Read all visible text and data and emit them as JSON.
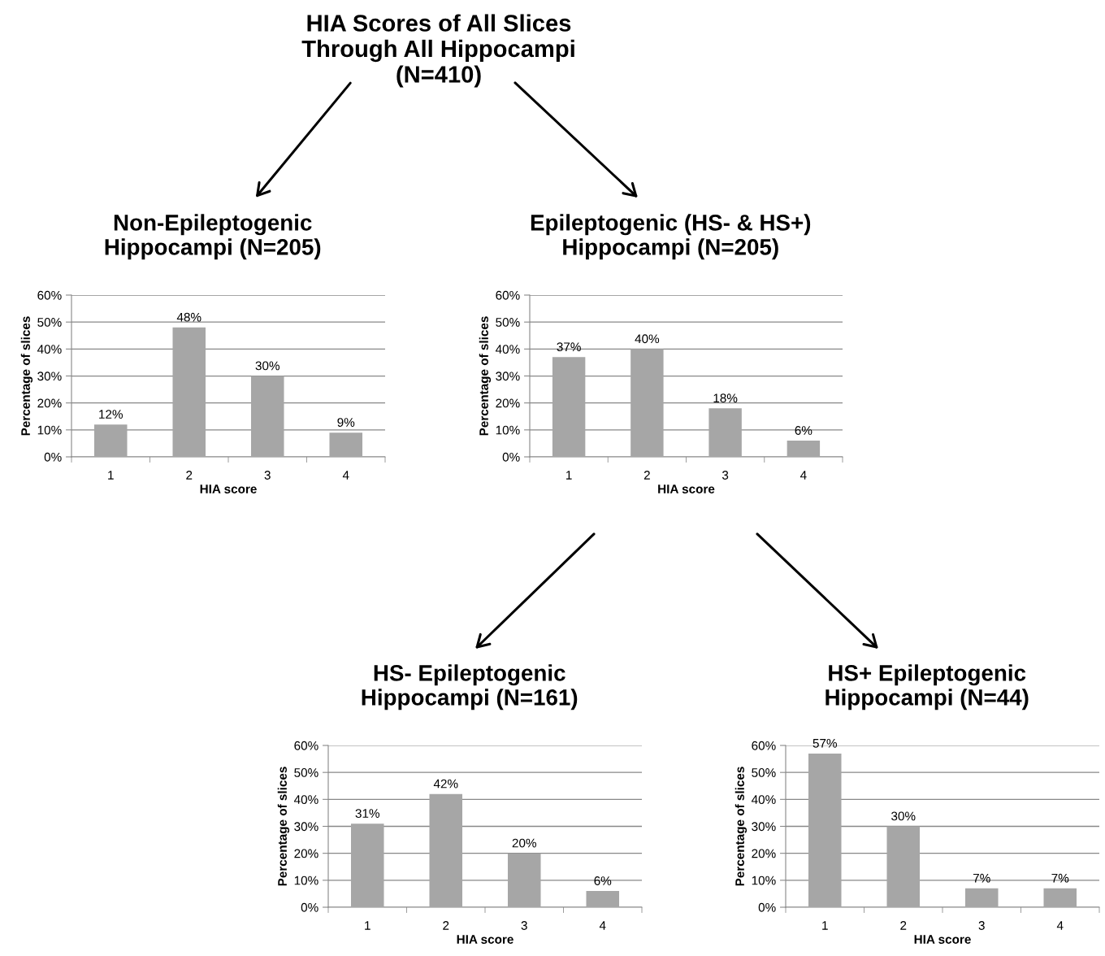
{
  "chart_data": [
    {
      "type": "other",
      "title": "HIA Scores of All Slices\nThrough All Hippocampi\n(N=410)"
    },
    {
      "type": "bar",
      "title": "Non-Epileptogenic\nHippocampi (N=205)",
      "xlabel": "HIA score",
      "ylabel": "Percentage of slices",
      "categories": [
        "1",
        "2",
        "3",
        "4"
      ],
      "color": "#a6a6a6",
      "values": [
        12,
        48,
        30,
        9
      ],
      "value_labels": [
        "12%",
        "48%",
        "30%",
        "9%"
      ],
      "ylim": [
        0,
        60
      ],
      "yticks": [
        {
          "value": 0,
          "label": "0%"
        },
        {
          "value": 10,
          "label": "10%"
        },
        {
          "value": 20,
          "label": "20%"
        },
        {
          "value": 30,
          "label": "30%"
        },
        {
          "value": 40,
          "label": "40%"
        },
        {
          "value": 50,
          "label": "50%"
        },
        {
          "value": 60,
          "label": "60%"
        }
      ],
      "grid": "y"
    },
    {
      "type": "bar",
      "title": "Epileptogenic (HS- & HS+)\nHippocampi (N=205)",
      "xlabel": "HIA score",
      "ylabel": "Percentage of slices",
      "categories": [
        "1",
        "2",
        "3",
        "4"
      ],
      "color": "#a6a6a6",
      "values": [
        37,
        40,
        18,
        6
      ],
      "value_labels": [
        "37%",
        "40%",
        "18%",
        "6%"
      ],
      "ylim": [
        0,
        60
      ],
      "yticks": [
        {
          "value": 0,
          "label": "0%"
        },
        {
          "value": 10,
          "label": "10%"
        },
        {
          "value": 20,
          "label": "20%"
        },
        {
          "value": 30,
          "label": "30%"
        },
        {
          "value": 40,
          "label": "40%"
        },
        {
          "value": 50,
          "label": "50%"
        },
        {
          "value": 60,
          "label": "60%"
        }
      ],
      "grid": "y"
    },
    {
      "type": "bar",
      "title": "HS- Epileptogenic\nHippocampi (N=161)",
      "xlabel": "HIA score",
      "ylabel": "Percentage of slices",
      "categories": [
        "1",
        "2",
        "3",
        "4"
      ],
      "color": "#a6a6a6",
      "values": [
        31,
        42,
        20,
        6
      ],
      "value_labels": [
        "31%",
        "42%",
        "20%",
        "6%"
      ],
      "ylim": [
        0,
        60
      ],
      "yticks": [
        {
          "value": 0,
          "label": "0%"
        },
        {
          "value": 10,
          "label": "10%"
        },
        {
          "value": 20,
          "label": "20%"
        },
        {
          "value": 30,
          "label": "30%"
        },
        {
          "value": 40,
          "label": "40%"
        },
        {
          "value": 50,
          "label": "50%"
        },
        {
          "value": 60,
          "label": "60%"
        }
      ],
      "grid": "y"
    },
    {
      "type": "bar",
      "title": "HS+ Epileptogenic\nHippocampi (N=44)",
      "xlabel": "HIA score",
      "ylabel": "Percentage of slices",
      "categories": [
        "1",
        "2",
        "3",
        "4"
      ],
      "color": "#a6a6a6",
      "values": [
        57,
        30,
        7,
        7
      ],
      "value_labels": [
        "57%",
        "30%",
        "7%",
        "7%"
      ],
      "ylim": [
        0,
        60
      ],
      "yticks": [
        {
          "value": 0,
          "label": "0%"
        },
        {
          "value": 10,
          "label": "10%"
        },
        {
          "value": 20,
          "label": "20%"
        },
        {
          "value": 30,
          "label": "30%"
        },
        {
          "value": 40,
          "label": "40%"
        },
        {
          "value": 50,
          "label": "50%"
        },
        {
          "value": 60,
          "label": "60%"
        }
      ],
      "grid": "y"
    }
  ]
}
